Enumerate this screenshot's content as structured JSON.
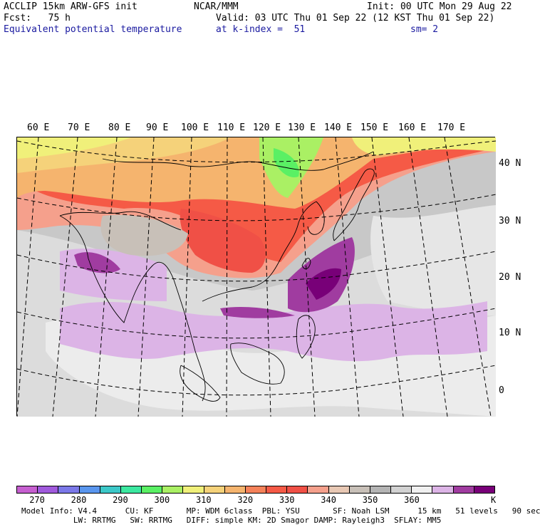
{
  "header": {
    "model": "ACCLIP 15km ARW-GFS init",
    "forecast": "Fcst:   75 h",
    "field": "Equivalent potential temperature",
    "center": "NCAR/MMM",
    "valid": "Valid: 03 UTC Thu 01 Sep 22 (12 KST Thu 01 Sep 22)",
    "level": "at k-index =  51",
    "init": "Init: 00 UTC Mon 29 Aug 22",
    "smoothing": "sm= 2"
  },
  "map": {
    "longitude_labels": [
      "60 E",
      "70 E",
      "80 E",
      "90 E",
      "100 E",
      "110 E",
      "120 E",
      "130 E",
      "140 E",
      "150 E",
      "160 E",
      "170 E"
    ],
    "latitude_labels": [
      "40 N",
      "30 N",
      "20 N",
      "10 N",
      "0"
    ]
  },
  "colorbar": {
    "colors": [
      "#c65fd0",
      "#a05adc",
      "#7b78e8",
      "#5a96ee",
      "#3cc8c8",
      "#3ce8a0",
      "#5af064",
      "#aaf064",
      "#f0f07a",
      "#f5d27a",
      "#f5b46e",
      "#f5825a",
      "#f55a46",
      "#f05046",
      "#f5a08c",
      "#e8c8b4",
      "#c8c0b8",
      "#b4b4b4",
      "#d2d2d2",
      "#f0f0f0",
      "#dcb4e6",
      "#a03ca0",
      "#780078"
    ],
    "labels": [
      "270",
      "280",
      "290",
      "300",
      "310",
      "320",
      "330",
      "340",
      "350",
      "360"
    ],
    "unit": "K"
  },
  "footer": {
    "line1": "Model Info: V4.4      CU: KF       MP: WDM 6class  PBL: YSU       SF: Noah LSM      15 km   51 levels   90 sec",
    "line2": "           LW: RRTMG   SW: RRTMG   DIFF: simple KM: 2D Smagor DAMP: Rayleigh3  SFLAY: MM5"
  }
}
